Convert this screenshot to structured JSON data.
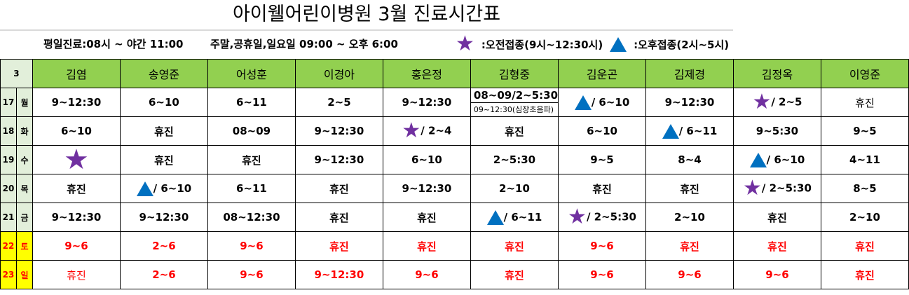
{
  "title": "아이웰어린이병원 3월 진료시간표",
  "info": {
    "weekday": "평일진료:08시 ~ 야간 11:00",
    "weekend": "주말,공휴일,일요일 09:00 ~ 오후 6:00"
  },
  "legend": {
    "star_label": ":오전접종(9시~12:30시)",
    "triangle_label": ":오후접종(2시~5시)",
    "star_color": "#7030a0",
    "triangle_color": "#0070c0"
  },
  "table": {
    "corner": "3",
    "doctors": [
      "김염",
      "송영준",
      "어성훈",
      "이경아",
      "홍은정",
      "김형중",
      "김운곤",
      "김제경",
      "김정옥",
      "이영준"
    ],
    "rows": [
      {
        "date": "17",
        "day": "월",
        "weekend": false,
        "cells": [
          {
            "text": "9~12:30"
          },
          {
            "text": "6~10"
          },
          {
            "text": "6~11"
          },
          {
            "text": "2~5"
          },
          {
            "text": "9~12:30"
          },
          {
            "text": "08~09/2~5:30",
            "sub": "09~12:30(심장초음파)"
          },
          {
            "icon": "triangle",
            "text": "/ 6~10"
          },
          {
            "text": "9~12:30"
          },
          {
            "icon": "star",
            "text": "/ 2~5"
          },
          {
            "text": "휴진",
            "normal": true
          }
        ]
      },
      {
        "date": "18",
        "day": "화",
        "weekend": false,
        "cells": [
          {
            "text": "6~10"
          },
          {
            "text": "휴진"
          },
          {
            "text": "08~09"
          },
          {
            "text": "9~12:30"
          },
          {
            "icon": "star",
            "text": "/ 2~4"
          },
          {
            "text": "휴진"
          },
          {
            "text": "6~10"
          },
          {
            "icon": "triangle",
            "text": "/ 6~11"
          },
          {
            "text": "9~5:30"
          },
          {
            "text": "9~5"
          }
        ]
      },
      {
        "date": "19",
        "day": "수",
        "weekend": false,
        "cells": [
          {
            "icon": "star",
            "text": ""
          },
          {
            "text": "휴진"
          },
          {
            "text": "휴진"
          },
          {
            "text": "9~12:30"
          },
          {
            "text": "6~10"
          },
          {
            "text": "2~5:30"
          },
          {
            "text": "9~5"
          },
          {
            "text": "8~4"
          },
          {
            "icon": "triangle",
            "text": "/ 6~10"
          },
          {
            "text": "4~11"
          }
        ]
      },
      {
        "date": "20",
        "day": "목",
        "weekend": false,
        "cells": [
          {
            "text": "휴진"
          },
          {
            "icon": "triangle",
            "text": "/ 6~10"
          },
          {
            "text": "6~11"
          },
          {
            "text": "휴진"
          },
          {
            "text": "9~12:30"
          },
          {
            "text": "2~10"
          },
          {
            "text": "휴진"
          },
          {
            "text": "휴진"
          },
          {
            "icon": "star",
            "text": "/ 2~5:30"
          },
          {
            "text": "8~5"
          }
        ]
      },
      {
        "date": "21",
        "day": "금",
        "weekend": false,
        "cells": [
          {
            "text": "9~12:30"
          },
          {
            "text": "9~12:30"
          },
          {
            "text": "08~12:30"
          },
          {
            "text": "휴진"
          },
          {
            "text": "휴진"
          },
          {
            "icon": "triangle",
            "text": "/ 6~11"
          },
          {
            "icon": "star",
            "text": "/ 2~5:30"
          },
          {
            "text": "2~10"
          },
          {
            "text": "휴진"
          },
          {
            "text": "2~10"
          }
        ]
      },
      {
        "date": "22",
        "day": "토",
        "weekend": true,
        "cells": [
          {
            "text": "9~6"
          },
          {
            "text": "2~6"
          },
          {
            "text": "9~6"
          },
          {
            "text": "휴진"
          },
          {
            "text": "휴진"
          },
          {
            "text": "휴진"
          },
          {
            "text": "9~6"
          },
          {
            "text": "휴진"
          },
          {
            "text": "휴진"
          },
          {
            "text": "휴진"
          }
        ]
      },
      {
        "date": "23",
        "day": "일",
        "weekend": true,
        "cells": [
          {
            "text": "휴진",
            "normal": true
          },
          {
            "text": "2~6"
          },
          {
            "text": "9~6"
          },
          {
            "text": "9~12:30"
          },
          {
            "text": "9~6"
          },
          {
            "text": "휴진"
          },
          {
            "text": "9~6"
          },
          {
            "text": "9~6"
          },
          {
            "text": "9~6"
          },
          {
            "text": "휴진"
          }
        ]
      }
    ]
  }
}
